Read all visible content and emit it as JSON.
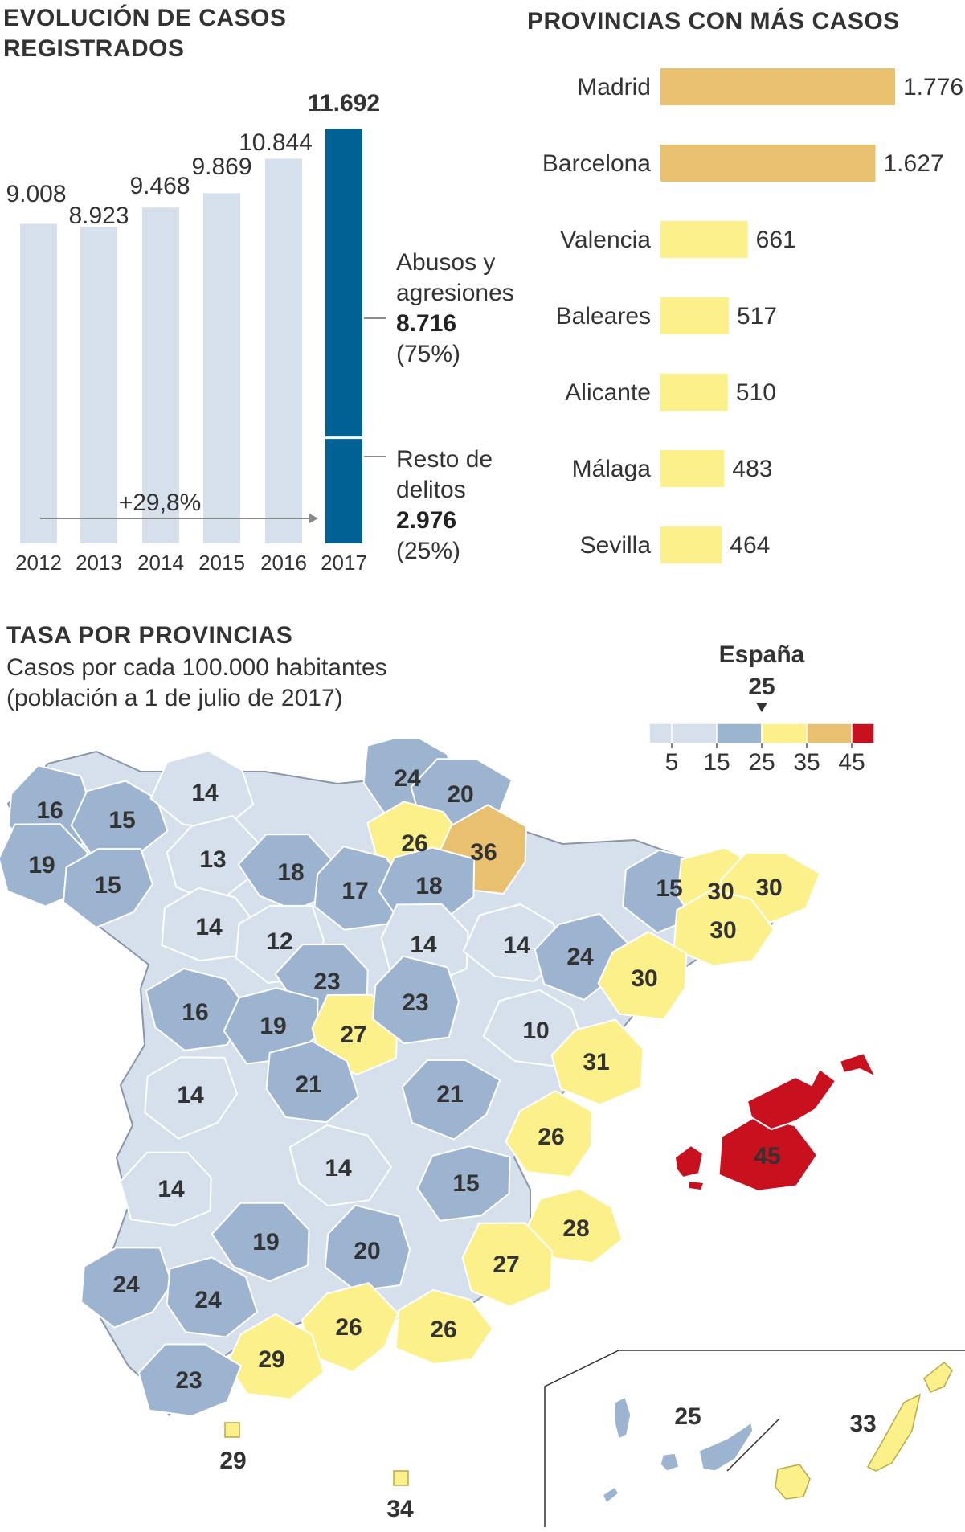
{
  "evolution": {
    "title_line1": "EVOLUCIÓN DE CASOS",
    "title_line2": "REGISTRADOS",
    "growth_label": "+29,8%",
    "breakdown": [
      {
        "line1": "Abusos y",
        "line2": "agresiones",
        "value": "8.716",
        "pct": "(75%)"
      },
      {
        "line1": "Resto de",
        "line2": "delitos",
        "value": "2.976",
        "pct": "(25%)"
      }
    ]
  },
  "provinces": {
    "title": "PROVINCIAS CON MÁS CASOS"
  },
  "map": {
    "title": "TASA POR PROVINCIAS",
    "subtitle_line1": "Casos por cada 100.000 habitantes",
    "subtitle_line2": "(población a 1 de julio de 2017)",
    "spain_label": "España",
    "spain_value": "25",
    "legend_ticks": [
      "5",
      "15",
      "25",
      "35",
      "45"
    ],
    "legend_colors": [
      "#d6e0ec",
      "#d6e0ec",
      "#9db4d1",
      "#fbf08a",
      "#e9c06f",
      "#c8101e"
    ],
    "colors": {
      "low": "#d6e0ec",
      "mid": "#9db4d1",
      "yellow": "#fbf08a",
      "orange": "#e9c06f",
      "red": "#c8101e",
      "border": "#6e7d8f"
    },
    "regions": [
      {
        "label": "16",
        "value": 16
      },
      {
        "label": "15",
        "value": 15
      },
      {
        "label": "19",
        "value": 19
      },
      {
        "label": "15",
        "value": 15
      },
      {
        "label": "14",
        "value": 14
      },
      {
        "label": "13",
        "value": 13
      },
      {
        "label": "14",
        "value": 14
      },
      {
        "label": "24",
        "value": 24
      },
      {
        "label": "20",
        "value": 20
      },
      {
        "label": "26",
        "value": 26
      },
      {
        "label": "36",
        "value": 36
      },
      {
        "label": "18",
        "value": 18
      },
      {
        "label": "17",
        "value": 17
      },
      {
        "label": "18",
        "value": 18
      },
      {
        "label": "14",
        "value": 14
      },
      {
        "label": "12",
        "value": 12
      },
      {
        "label": "14",
        "value": 14
      },
      {
        "label": "24",
        "value": 24
      },
      {
        "label": "15",
        "value": 15
      },
      {
        "label": "30",
        "value": 30
      },
      {
        "label": "30",
        "value": 30
      },
      {
        "label": "30",
        "value": 30
      },
      {
        "label": "30",
        "value": 30
      },
      {
        "label": "23",
        "value": 23
      },
      {
        "label": "16",
        "value": 16
      },
      {
        "label": "19",
        "value": 19
      },
      {
        "label": "27",
        "value": 27
      },
      {
        "label": "23",
        "value": 23
      },
      {
        "label": "10",
        "value": 10
      },
      {
        "label": "31",
        "value": 31
      },
      {
        "label": "14",
        "value": 14
      },
      {
        "label": "21",
        "value": 21
      },
      {
        "label": "21",
        "value": 21
      },
      {
        "label": "45",
        "value": 45
      },
      {
        "label": "26",
        "value": 26
      },
      {
        "label": "14",
        "value": 14
      },
      {
        "label": "14",
        "value": 14
      },
      {
        "label": "15",
        "value": 15
      },
      {
        "label": "19",
        "value": 19
      },
      {
        "label": "20",
        "value": 20
      },
      {
        "label": "28",
        "value": 28
      },
      {
        "label": "27",
        "value": 27
      },
      {
        "label": "24",
        "value": 24
      },
      {
        "label": "24",
        "value": 24
      },
      {
        "label": "26",
        "value": 26
      },
      {
        "label": "26",
        "value": 26
      },
      {
        "label": "29",
        "value": 29
      },
      {
        "label": "23",
        "value": 23
      },
      {
        "label": "29",
        "value": 29
      },
      {
        "label": "34",
        "value": 34
      },
      {
        "label": "25",
        "value": 25
      },
      {
        "label": "33",
        "value": 33
      }
    ]
  },
  "chart_data": [
    {
      "type": "bar",
      "title": "EVOLUCIÓN DE CASOS REGISTRADOS",
      "categories": [
        "2012",
        "2013",
        "2014",
        "2015",
        "2016",
        "2017"
      ],
      "values": [
        9008,
        8923,
        9468,
        9869,
        10844,
        11692
      ],
      "labels": [
        "9.008",
        "8.923",
        "9.468",
        "9.869",
        "10.844",
        "11.692"
      ],
      "stack_2017": [
        {
          "name": "Abusos y agresiones",
          "value": 8716
        },
        {
          "name": "Resto de delitos",
          "value": 2976
        }
      ],
      "colors": {
        "bar": "#d6e0ec",
        "highlight": "#006194"
      },
      "ylim": [
        0,
        11692
      ]
    },
    {
      "type": "bar",
      "orientation": "horizontal",
      "title": "PROVINCIAS CON MÁS CASOS",
      "categories": [
        "Madrid",
        "Barcelona",
        "Valencia",
        "Baleares",
        "Alicante",
        "Málaga",
        "Sevilla"
      ],
      "values": [
        1776,
        1627,
        661,
        517,
        510,
        483,
        464
      ],
      "labels": [
        "1.776",
        "1.627",
        "661",
        "517",
        "510",
        "483",
        "464"
      ],
      "colors": {
        "top": "#e9c06f",
        "rest": "#fbf08a"
      },
      "xlim": [
        0,
        1776
      ]
    }
  ]
}
